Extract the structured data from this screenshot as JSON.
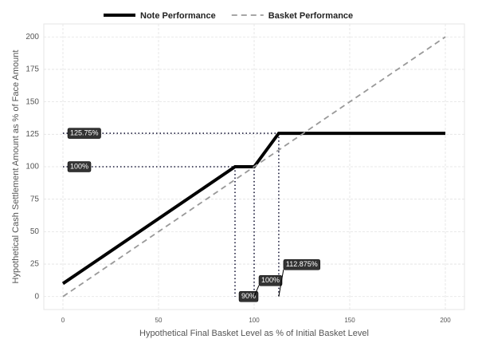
{
  "chart_data": {
    "type": "line",
    "xlabel": "Hypothetical Final Basket Level as % of Initial Basket Level",
    "ylabel": "Hypothetical Cash Settlement Amount as % of Face Amount",
    "series": [
      {
        "name": "Note Performance",
        "color": "#000000",
        "style": "solid",
        "x": [
          0,
          90,
          100,
          112.875,
          200
        ],
        "values": [
          10,
          100,
          100,
          125.75,
          125.75
        ]
      },
      {
        "name": "Basket Performance",
        "color": "#999999",
        "style": "dashed",
        "x": [
          0,
          200
        ],
        "values": [
          0,
          200
        ]
      }
    ],
    "annotations": [
      {
        "label": "125.75%",
        "x": 0,
        "y": 125.75
      },
      {
        "label": "100%",
        "x": 0,
        "y": 100
      },
      {
        "label": "90%",
        "x": 90,
        "y": 0
      },
      {
        "label": "100%",
        "x": 100,
        "y": 0
      },
      {
        "label": "112.875%",
        "x": 112.875,
        "y": 0
      }
    ],
    "xlim": [
      -10,
      210
    ],
    "ylim": [
      -10,
      210
    ],
    "xticks": [
      0,
      50,
      100,
      150,
      200
    ],
    "yticks": [
      0,
      25,
      50,
      75,
      100,
      125,
      150,
      175,
      200
    ],
    "grid": true,
    "legend": "top"
  }
}
